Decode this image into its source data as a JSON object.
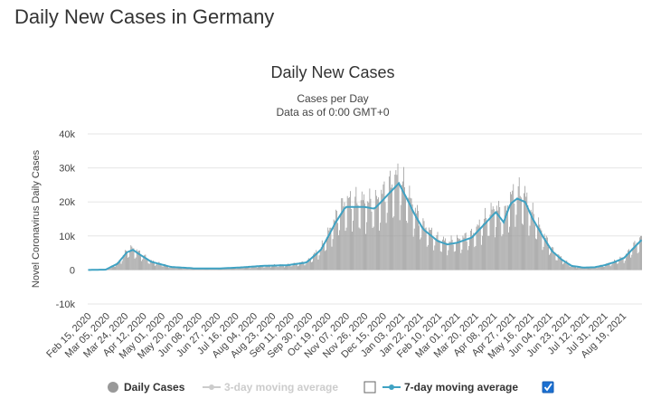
{
  "page": {
    "title": "Daily New Cases in Germany"
  },
  "colors": {
    "bar": "#999999",
    "line": "#3fa2c3",
    "grid": "#e6e6e6",
    "text": "#333333",
    "legend_inactive": "#cccccc"
  },
  "chart_data": {
    "type": "bar",
    "title": "Daily New Cases",
    "subtitle": [
      "Cases per Day",
      "Data as of 0:00 GMT+0"
    ],
    "ylabel": "Novel Coronavirus Daily Cases",
    "xlabel": "",
    "ylim": [
      -10000,
      40000
    ],
    "yticks": [
      {
        "value": 40000,
        "label": "40k"
      },
      {
        "value": 30000,
        "label": "30k"
      },
      {
        "value": 20000,
        "label": "20k"
      },
      {
        "value": 10000,
        "label": "10k"
      },
      {
        "value": 0,
        "label": "0"
      },
      {
        "value": -10000,
        "label": "-10k"
      }
    ],
    "x_tick_labels": [
      "Feb 15, 2020",
      "Mar 05, 2020",
      "Mar 24, 2020",
      "Apr 12, 2020",
      "May 01, 2020",
      "May 20, 2020",
      "Jun 08, 2020",
      "Jun 27, 2020",
      "Jul 16, 2020",
      "Aug 04, 2020",
      "Aug 23, 2020",
      "Sep 11, 2020",
      "Sep 30, 2020",
      "Oct 19, 2020",
      "Nov 07, 2020",
      "Nov 26, 2020",
      "Dec 15, 2020",
      "Jan 03, 2021",
      "Jan 22, 2021",
      "Feb 10, 2021",
      "Mar 01, 2021",
      "Mar 20, 2021",
      "Apr 08, 2021",
      "Apr 27, 2021",
      "May 16, 2021",
      "Jun 04, 2021",
      "Jun 23, 2021",
      "Jul 12, 2021",
      "Jul 31, 2021",
      "Aug 19, 2021"
    ],
    "series": [
      {
        "name": "Daily Cases",
        "type": "bar",
        "x_start": "Feb 15, 2020",
        "interval_days": 1,
        "weekly_cycle": [
          0.72,
          1.08,
          1.18,
          1.22,
          1.15,
          1.02,
          0.63
        ],
        "trend_knots": [
          [
            0,
            0
          ],
          [
            18,
            100
          ],
          [
            30,
            1800
          ],
          [
            40,
            5200
          ],
          [
            46,
            5900
          ],
          [
            55,
            4200
          ],
          [
            65,
            2400
          ],
          [
            85,
            900
          ],
          [
            110,
            450
          ],
          [
            135,
            450
          ],
          [
            155,
            700
          ],
          [
            180,
            1200
          ],
          [
            205,
            1400
          ],
          [
            225,
            2200
          ],
          [
            240,
            6000
          ],
          [
            255,
            14000
          ],
          [
            265,
            18500
          ],
          [
            285,
            18500
          ],
          [
            295,
            18000
          ],
          [
            305,
            21000
          ],
          [
            320,
            25500
          ],
          [
            330,
            20000
          ],
          [
            335,
            17000
          ],
          [
            345,
            12000
          ],
          [
            360,
            8500
          ],
          [
            370,
            7500
          ],
          [
            380,
            8000
          ],
          [
            395,
            9500
          ],
          [
            405,
            12500
          ],
          [
            420,
            17000
          ],
          [
            428,
            14000
          ],
          [
            435,
            19500
          ],
          [
            442,
            21000
          ],
          [
            450,
            20000
          ],
          [
            458,
            15000
          ],
          [
            468,
            10000
          ],
          [
            478,
            5500
          ],
          [
            488,
            3000
          ],
          [
            498,
            1200
          ],
          [
            510,
            700
          ],
          [
            522,
            800
          ],
          [
            532,
            1400
          ],
          [
            542,
            2300
          ],
          [
            552,
            3500
          ],
          [
            562,
            6500
          ],
          [
            570,
            8800
          ]
        ]
      },
      {
        "name": "3-day moving average",
        "type": "line",
        "visible": false
      },
      {
        "name": "7-day moving average",
        "type": "line",
        "visible": true,
        "points": [
          [
            0,
            0
          ],
          [
            18,
            100
          ],
          [
            30,
            1800
          ],
          [
            40,
            5200
          ],
          [
            46,
            5900
          ],
          [
            55,
            4200
          ],
          [
            65,
            2400
          ],
          [
            85,
            900
          ],
          [
            110,
            450
          ],
          [
            135,
            450
          ],
          [
            155,
            700
          ],
          [
            180,
            1200
          ],
          [
            205,
            1400
          ],
          [
            225,
            2200
          ],
          [
            240,
            6000
          ],
          [
            255,
            14000
          ],
          [
            265,
            18500
          ],
          [
            285,
            18500
          ],
          [
            295,
            18000
          ],
          [
            305,
            21000
          ],
          [
            320,
            25500
          ],
          [
            330,
            20000
          ],
          [
            335,
            17000
          ],
          [
            345,
            12000
          ],
          [
            360,
            8500
          ],
          [
            370,
            7500
          ],
          [
            380,
            8000
          ],
          [
            395,
            9500
          ],
          [
            405,
            12500
          ],
          [
            420,
            17000
          ],
          [
            428,
            14000
          ],
          [
            435,
            19500
          ],
          [
            442,
            21000
          ],
          [
            450,
            20000
          ],
          [
            458,
            15000
          ],
          [
            468,
            10000
          ],
          [
            478,
            5500
          ],
          [
            488,
            3000
          ],
          [
            498,
            1200
          ],
          [
            510,
            700
          ],
          [
            522,
            800
          ],
          [
            532,
            1400
          ],
          [
            542,
            2300
          ],
          [
            552,
            3500
          ],
          [
            562,
            6500
          ],
          [
            570,
            8800
          ]
        ]
      }
    ],
    "legend": [
      {
        "label": "Daily Cases",
        "active": true,
        "has_checkbox": false
      },
      {
        "label": "3-day moving average",
        "active": false,
        "has_checkbox": true,
        "checked": false
      },
      {
        "label": "7-day moving average",
        "active": true,
        "has_checkbox": true,
        "checked": true
      }
    ]
  }
}
